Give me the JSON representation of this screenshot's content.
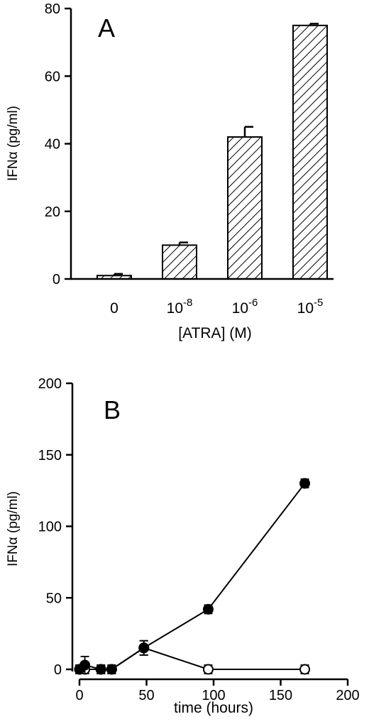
{
  "chart_data": [
    {
      "type": "bar",
      "panel_label": "A",
      "categories": [
        "0",
        "10-8",
        "10-6",
        "10-5"
      ],
      "category_labels": [
        {
          "base": "0",
          "exp": ""
        },
        {
          "base": "10",
          "exp": "-8"
        },
        {
          "base": "10",
          "exp": "-6"
        },
        {
          "base": "10",
          "exp": "-5"
        }
      ],
      "values": [
        1,
        10,
        42,
        75
      ],
      "errors": [
        0.5,
        0.8,
        3,
        0.5
      ],
      "xlabel": "[ATRA] (M)",
      "ylabel": "IFNα (pg/ml)",
      "ylim": [
        0,
        80
      ],
      "yticks": [
        0,
        20,
        40,
        60,
        80
      ],
      "grid": false,
      "bar_fill": "diagonal hatch"
    },
    {
      "type": "line",
      "panel_label": "B",
      "xlabel": "time (hours)",
      "ylabel": "IFNα (pg/ml)",
      "xlim": [
        0,
        200
      ],
      "ylim": [
        0,
        200
      ],
      "xticks": [
        0,
        50,
        100,
        150,
        200
      ],
      "yticks": [
        0,
        50,
        100,
        150,
        200
      ],
      "grid": false,
      "series": [
        {
          "marker": "filled circle",
          "x": [
            0,
            4,
            16,
            24,
            48,
            96,
            168
          ],
          "y": [
            0,
            3,
            0,
            0,
            15,
            42,
            130
          ],
          "errors": [
            3,
            6,
            3,
            3,
            5,
            3,
            3
          ]
        },
        {
          "marker": "open circle",
          "x": [
            0,
            4,
            16,
            24,
            48,
            96,
            168
          ],
          "y": [
            0,
            0,
            0,
            0,
            15,
            0,
            0
          ],
          "errors": [
            3,
            3,
            3,
            3,
            5,
            3,
            3
          ]
        }
      ]
    }
  ]
}
